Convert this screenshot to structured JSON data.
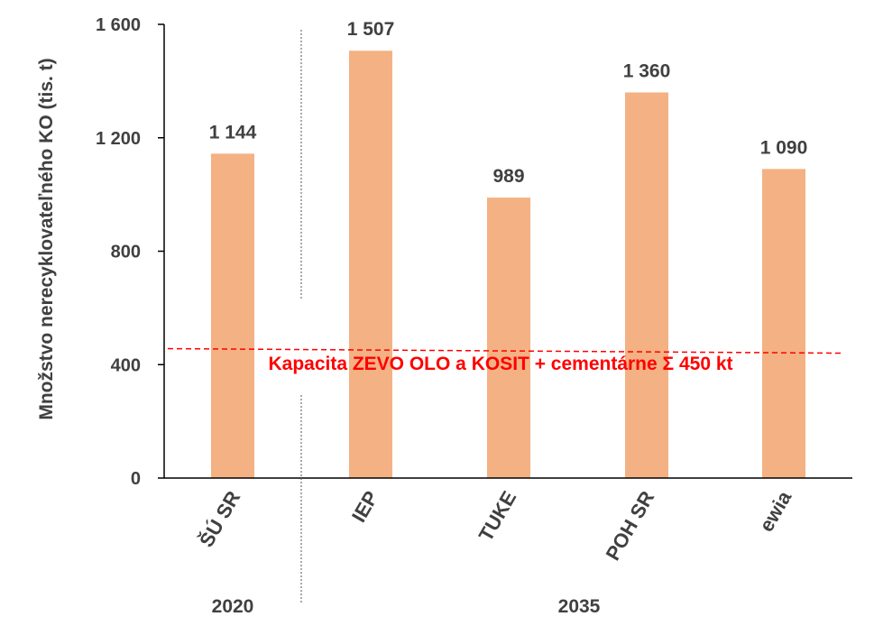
{
  "chart_data": {
    "type": "bar",
    "categories": [
      "ŠÚ SR",
      "IEP",
      "TUKE",
      "POH SR",
      "ewia"
    ],
    "values": [
      1144,
      1507,
      989,
      1360,
      1090
    ],
    "value_labels": [
      "1 144",
      "1 507",
      "989",
      "1 360",
      "1 090"
    ],
    "ylabel": "Množstvo nerecyklovateľného KO (tis. t)",
    "xlabel": "",
    "ylim": [
      0,
      1600
    ],
    "yticks": [
      0,
      400,
      800,
      1200,
      1600
    ],
    "ytick_labels": [
      "0",
      "400",
      "800",
      "1 200",
      "1 600"
    ],
    "groups": [
      {
        "label": "2020",
        "categories": [
          "ŠÚ SR"
        ]
      },
      {
        "label": "2035",
        "categories": [
          "IEP",
          "TUKE",
          "POH SR",
          "ewia"
        ]
      }
    ],
    "reference_line": {
      "value": 450,
      "label": "Kapacita ZEVO OLO a KOSIT + cementárne Σ 450 kt",
      "style": "dashed"
    },
    "grid": false,
    "legend": "none",
    "colors": {
      "bar": "#F4B183",
      "axis": "#000000",
      "reference": "#FF0000",
      "text": "#404040"
    }
  }
}
